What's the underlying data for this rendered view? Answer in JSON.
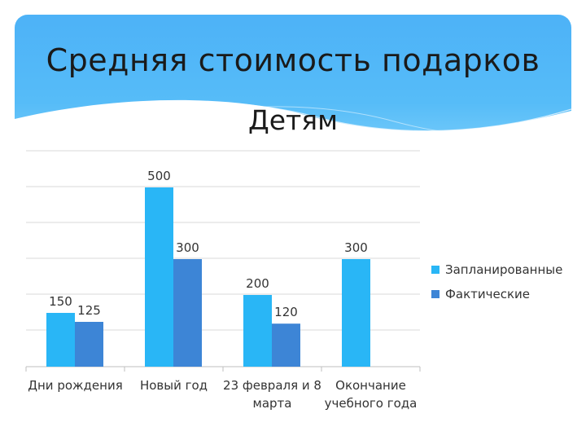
{
  "title": "Средняя стоимость подарков",
  "subtitle": "Детям",
  "colors": {
    "planned": "#29b6f6",
    "actual": "#3d85d6",
    "banner": "#3fa9f5",
    "grid": "#d9d9d9"
  },
  "chart_data": {
    "type": "bar",
    "categories": [
      [
        "Дни рождения"
      ],
      [
        "Новый год"
      ],
      [
        "23 февраля и 8",
        "марта"
      ],
      [
        "Окончание",
        "учебного года"
      ]
    ],
    "series": [
      {
        "name": "Запланированные",
        "values": [
          150,
          500,
          200,
          300
        ]
      },
      {
        "name": "Фактические",
        "values": [
          125,
          300,
          120,
          null
        ]
      }
    ],
    "ylim": [
      0,
      500
    ],
    "grid": true,
    "legend": "right"
  }
}
